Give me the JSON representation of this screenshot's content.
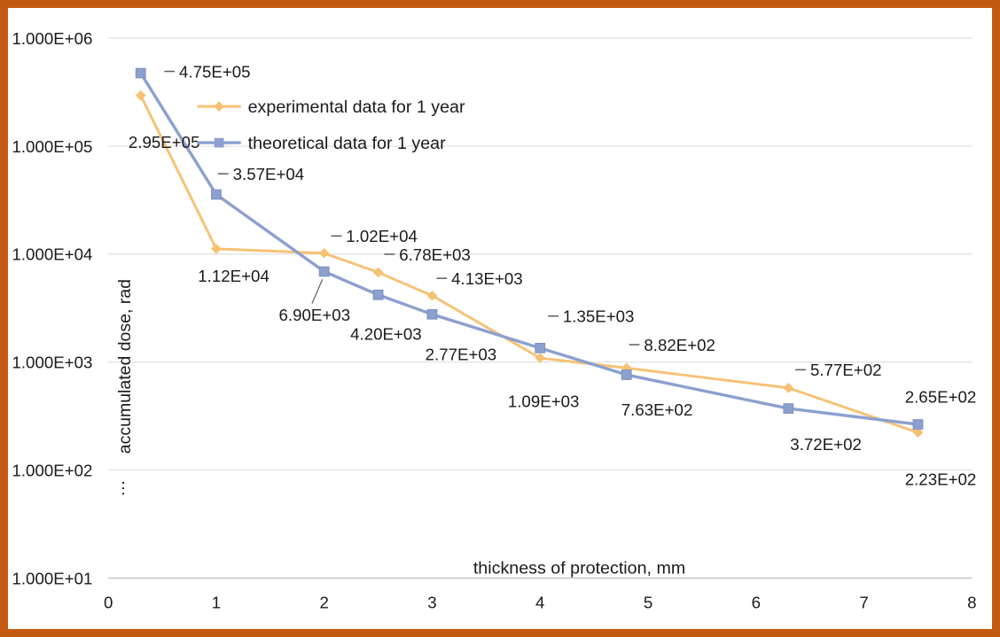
{
  "frame": {
    "border_color": "#C45911",
    "background": "#FFFFFF"
  },
  "chart_data": {
    "type": "line",
    "xlabel": "thickness of protection, mm",
    "ylabel": "accumulated dose, rad",
    "ylabel_overflow": "…",
    "xlim": [
      0,
      8
    ],
    "ylog": [
      1,
      6
    ],
    "x_ticks": [
      0,
      1,
      2,
      3,
      4,
      5,
      6,
      7,
      8
    ],
    "y_ticks": [
      {
        "label": "1.000E+06",
        "value": 1000000
      },
      {
        "label": "1.000E+05",
        "value": 100000
      },
      {
        "label": "1.000E+04",
        "value": 10000
      },
      {
        "label": "1.000E+03",
        "value": 1000
      },
      {
        "label": "1.000E+02",
        "value": 100
      },
      {
        "label": "1.000E+01",
        "value": 10
      }
    ],
    "grid": "horizontal-major",
    "legend_position": "inside-top-left",
    "colors": {
      "grid": "#D9D9D9",
      "axis": "#BFBFBF",
      "tick": "#404040",
      "label": "#1A1A1A",
      "leader": "#595959"
    },
    "series": [
      {
        "name": "experimental data for 1 year",
        "color": "#F7C173",
        "edge": "#F7C173",
        "marker": "diamond",
        "width": 3,
        "points": [
          {
            "x": 0.3,
            "y": 295000,
            "label": "2.95E+05",
            "dx": -14,
            "dy": 61,
            "leader": "none"
          },
          {
            "x": 1,
            "y": 11200,
            "label": "1.12E+04",
            "dx": -21,
            "dy": 38,
            "leader": "none"
          },
          {
            "x": 2,
            "y": 10200,
            "label": "1.02E+04",
            "dx": 25,
            "dy": -13,
            "leader": "dash"
          },
          {
            "x": 2.5,
            "y": 6780,
            "label": "6.78E+03",
            "dx": 24,
            "dy": -14,
            "leader": "dash"
          },
          {
            "x": 3,
            "y": 4130,
            "label": "4.13E+03",
            "dx": 22,
            "dy": -13,
            "leader": "dash"
          },
          {
            "x": 4,
            "y": 1090,
            "label": "1.09E+03",
            "dx": -37,
            "dy": 57,
            "leader": "none"
          },
          {
            "x": 4.8,
            "y": 882,
            "label": "8.82E+02",
            "dx": 20,
            "dy": -20,
            "leader": "dash"
          },
          {
            "x": 6.3,
            "y": 577,
            "label": "5.77E+02",
            "dx": 25,
            "dy": -14,
            "leader": "dash"
          },
          {
            "x": 7.5,
            "y": 223,
            "label": "2.23E+02",
            "dx": -15,
            "dy": 61,
            "leader": "none"
          }
        ]
      },
      {
        "name": "theoretical data for 1 year",
        "color": "#8CA0CF",
        "edge": "#7C90BE",
        "marker": "square",
        "width": 3.5,
        "points": [
          {
            "x": 0.3,
            "y": 475000,
            "label": "4.75E+05",
            "dx": 44,
            "dy": 5,
            "leader": "dash"
          },
          {
            "x": 1,
            "y": 35700,
            "label": "3.57E+04",
            "dx": 19,
            "dy": -17,
            "leader": "dash"
          },
          {
            "x": 2,
            "y": 6900,
            "label": "6.90E+03",
            "dx": -52,
            "dy": 57,
            "leader": "line"
          },
          {
            "x": 2.5,
            "y": 4200,
            "label": "4.20E+03",
            "dx": -32,
            "dy": 52,
            "leader": "none"
          },
          {
            "x": 3,
            "y": 2770,
            "label": "2.77E+03",
            "dx": -8,
            "dy": 53,
            "leader": "none"
          },
          {
            "x": 4,
            "y": 1350,
            "label": "1.35E+03",
            "dx": 26,
            "dy": -30,
            "leader": "dash"
          },
          {
            "x": 4.8,
            "y": 763,
            "label": "7.63E+02",
            "dx": -6,
            "dy": 47,
            "leader": "none"
          },
          {
            "x": 6.3,
            "y": 372,
            "label": "3.72E+02",
            "dx": 2,
            "dy": 48,
            "leader": "none"
          },
          {
            "x": 7.5,
            "y": 265,
            "label": "2.65E+02",
            "dx": -15,
            "dy": -25,
            "leader": "none"
          }
        ]
      }
    ],
    "legend": [
      "experimental data for 1 year",
      "theoretical data for 1 year"
    ]
  }
}
